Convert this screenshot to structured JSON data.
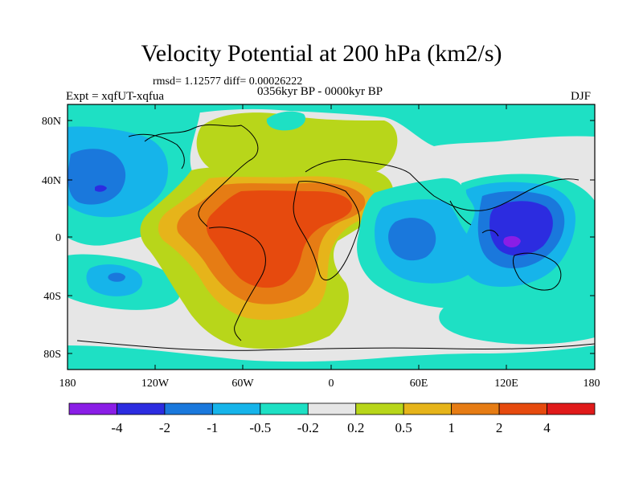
{
  "title": "Velocity Potential at 200 hPa (km2/s)",
  "stats": "rmsd= 1.12577 diff= 0.00026222",
  "period": "0356kyr BP - 0000kyr BP",
  "experiment": "Expt = xqfUT-xqfua",
  "season": "DJF",
  "lat_ticks": [
    "80N",
    "40N",
    "0",
    "40S",
    "80S"
  ],
  "lon_ticks": [
    "180",
    "120W",
    "60W",
    "0",
    "60E",
    "120E",
    "180"
  ],
  "colorbar": {
    "colors": [
      "#8a1ee6",
      "#2c2ce0",
      "#1a78dc",
      "#16b4ea",
      "#1ee0c4",
      "#e6e6e6",
      "#b8d61a",
      "#e6b41a",
      "#e67c14",
      "#e64a0e",
      "#e01a1a"
    ],
    "labels": [
      "-4",
      "-2",
      "-1",
      "-0.5",
      "-0.2",
      "0.2",
      "0.5",
      "1",
      "2",
      "4"
    ]
  }
}
